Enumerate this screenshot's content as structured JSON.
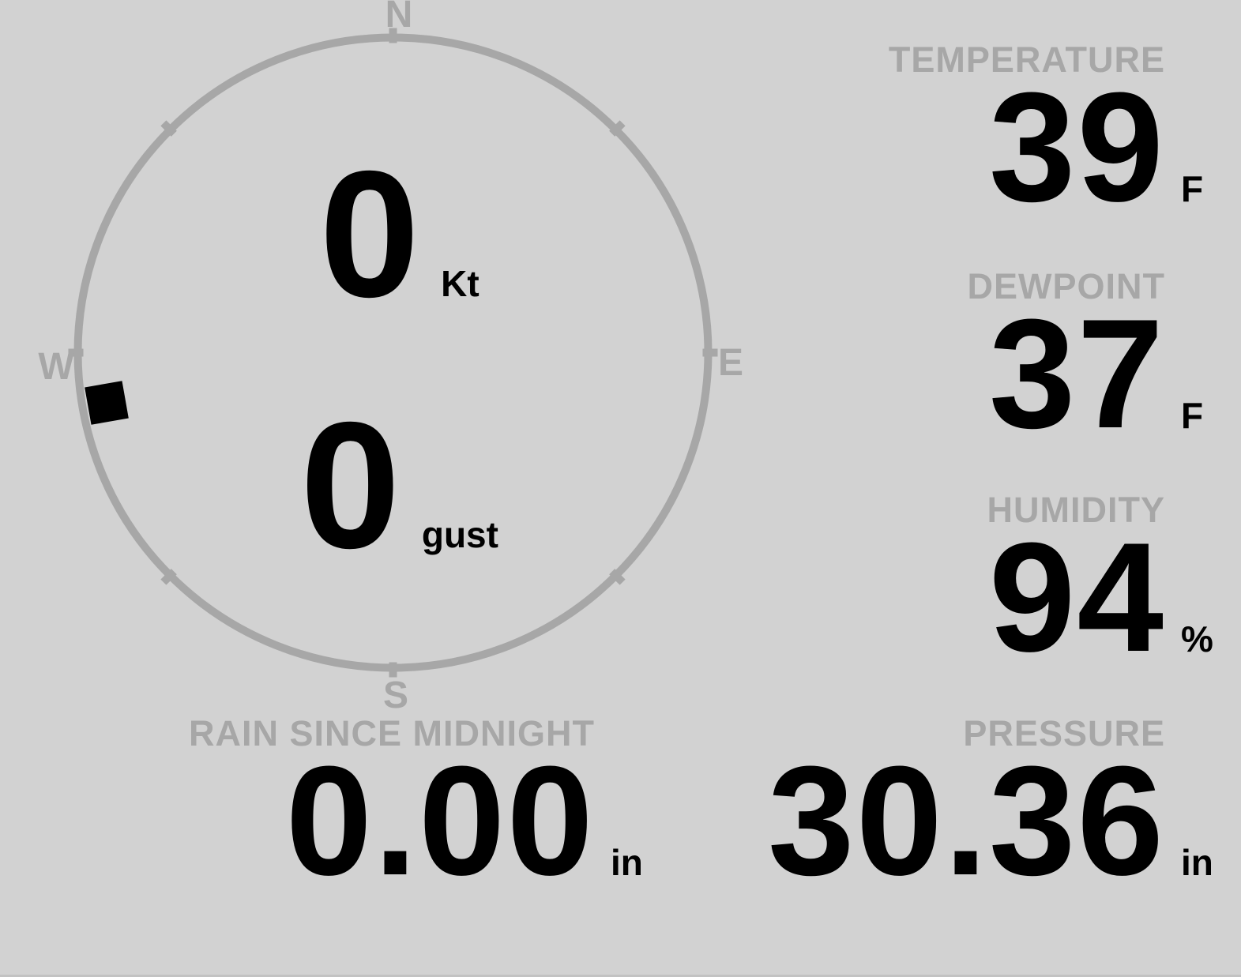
{
  "colors": {
    "background": "#d2d2d2",
    "muted_gray": "#a7a7a7",
    "value_black": "#000000"
  },
  "wind": {
    "compass_labels": {
      "north": "N",
      "east": "E",
      "south": "S",
      "west": "W"
    },
    "speed": {
      "value": "0",
      "unit": "Kt"
    },
    "gust": {
      "value": "0",
      "unit": "gust"
    },
    "direction_deg": 260
  },
  "metrics": [
    {
      "id": "temperature",
      "label": "TEMPERATURE",
      "value": "39",
      "unit": "F"
    },
    {
      "id": "dewpoint",
      "label": "DEWPOINT",
      "value": "37",
      "unit": "F"
    },
    {
      "id": "humidity",
      "label": "HUMIDITY",
      "value": "94",
      "unit": "%"
    },
    {
      "id": "pressure",
      "label": "PRESSURE",
      "value": "30.36",
      "unit": "in"
    },
    {
      "id": "rain_since_midnight",
      "label": "RAIN SINCE MIDNIGHT",
      "value": "0.00",
      "unit": "in"
    }
  ]
}
